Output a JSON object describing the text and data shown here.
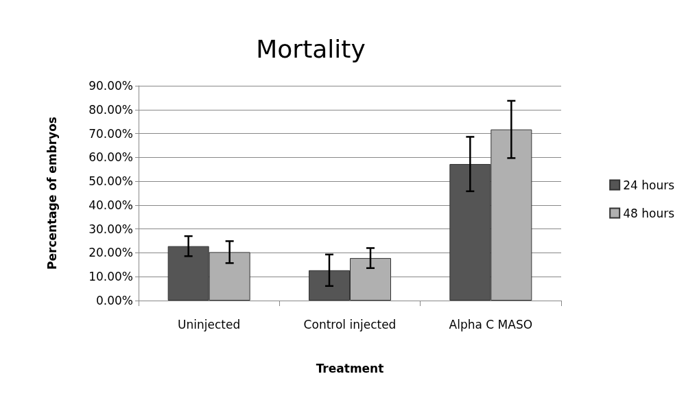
{
  "chart_data": {
    "type": "bar",
    "title": "Mortality",
    "xlabel": "Treatment",
    "ylabel": "Percentage of embryos",
    "categories": [
      "Uninjected",
      "Control injected",
      "Alpha C MASO"
    ],
    "series": [
      {
        "name": "24 hours",
        "color": "#555555",
        "values": [
          22.8,
          12.7,
          57.2
        ],
        "errors": [
          4.2,
          6.6,
          11.4
        ]
      },
      {
        "name": "48 hours",
        "color": "#b0b0b0",
        "values": [
          20.3,
          17.8,
          71.7
        ],
        "errors": [
          4.6,
          4.2,
          12
        ]
      }
    ],
    "ylim": [
      0,
      90
    ],
    "yticks": [
      {
        "value": 0,
        "label": "0.00%"
      },
      {
        "value": 10,
        "label": "10.00%"
      },
      {
        "value": 20,
        "label": "20.00%"
      },
      {
        "value": 30,
        "label": "30.00%"
      },
      {
        "value": 40,
        "label": "40.00%"
      },
      {
        "value": 50,
        "label": "50.00%"
      },
      {
        "value": 60,
        "label": "60.00%"
      },
      {
        "value": 70,
        "label": "70.00%"
      },
      {
        "value": 80,
        "label": "80.00%"
      },
      {
        "value": 90,
        "label": "90.00%"
      }
    ],
    "grid": "y",
    "legend": "right"
  }
}
